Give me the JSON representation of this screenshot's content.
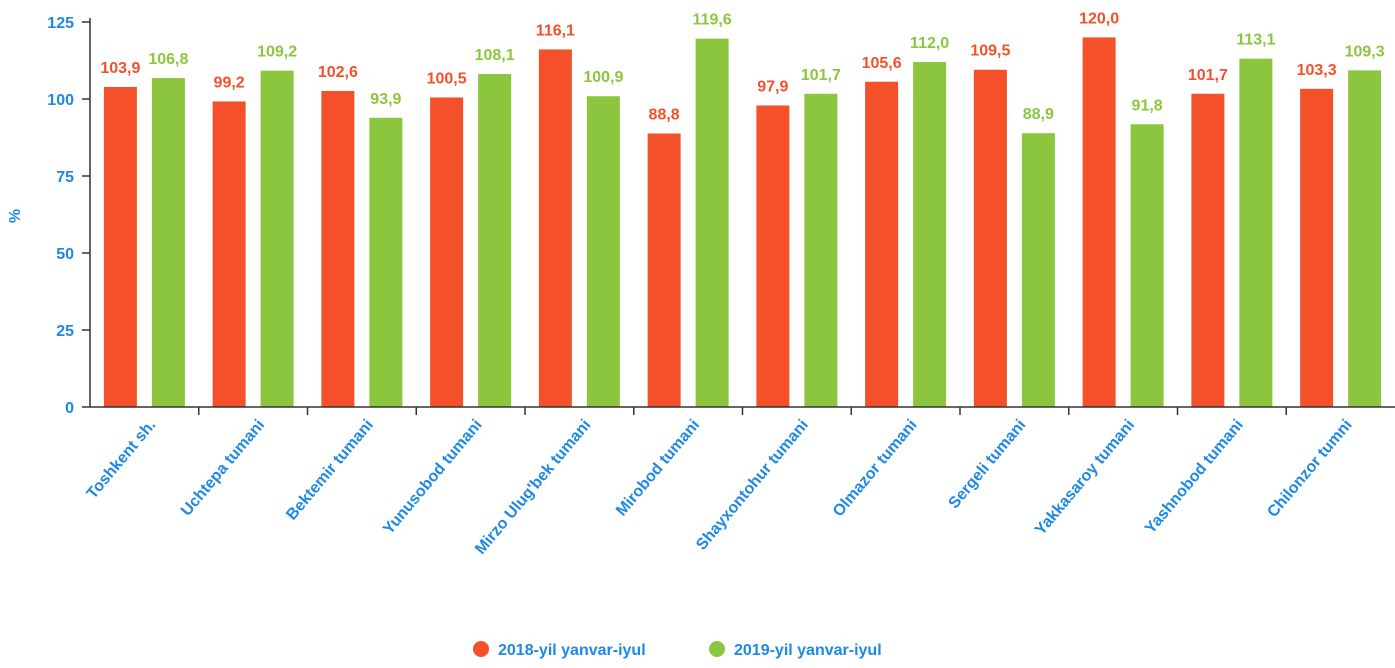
{
  "chart_data": {
    "type": "bar",
    "ylabel": "%",
    "ylim": [
      0,
      125
    ],
    "yticks": [
      0,
      25,
      50,
      75,
      100,
      125
    ],
    "grid": false,
    "legend_position": "bottom-center",
    "categories": [
      "Toshkent sh.",
      "Uchtepa tumani",
      "Bektemir tumani",
      "Yunusobod tumani",
      "Mirzo Ulug'bek tumani",
      "Mirobod tumani",
      "Shayxontohur tumani",
      "Olmazor tumani",
      "Sergeli tumani",
      "Yakkasaroy tumani",
      "Yashnobod tumani",
      "Chilonzor tumni"
    ],
    "series": [
      {
        "name": "2018-yil yanvar-iyul",
        "color": "#F4502A",
        "values": [
          103.9,
          99.2,
          102.6,
          100.5,
          116.1,
          88.8,
          97.9,
          105.6,
          109.5,
          120.0,
          101.7,
          103.3
        ],
        "labels": [
          "103,9",
          "99,2",
          "102,6",
          "100,5",
          "116,1",
          "88,8",
          "97,9",
          "105,6",
          "109,5",
          "120,0",
          "101,7",
          "103,3"
        ]
      },
      {
        "name": "2019-yil yanvar-iyul",
        "color": "#8CC63F",
        "values": [
          106.8,
          109.2,
          93.9,
          108.1,
          100.9,
          119.6,
          101.7,
          112.0,
          88.9,
          91.8,
          113.1,
          109.3
        ],
        "labels": [
          "106,8",
          "109,2",
          "93,9",
          "108,1",
          "100,9",
          "119,6",
          "101,7",
          "112,0",
          "88,9",
          "91,8",
          "113,1",
          "109,3"
        ]
      }
    ],
    "axis_color": "#1E88E5",
    "axis_line_color": "#333333"
  }
}
